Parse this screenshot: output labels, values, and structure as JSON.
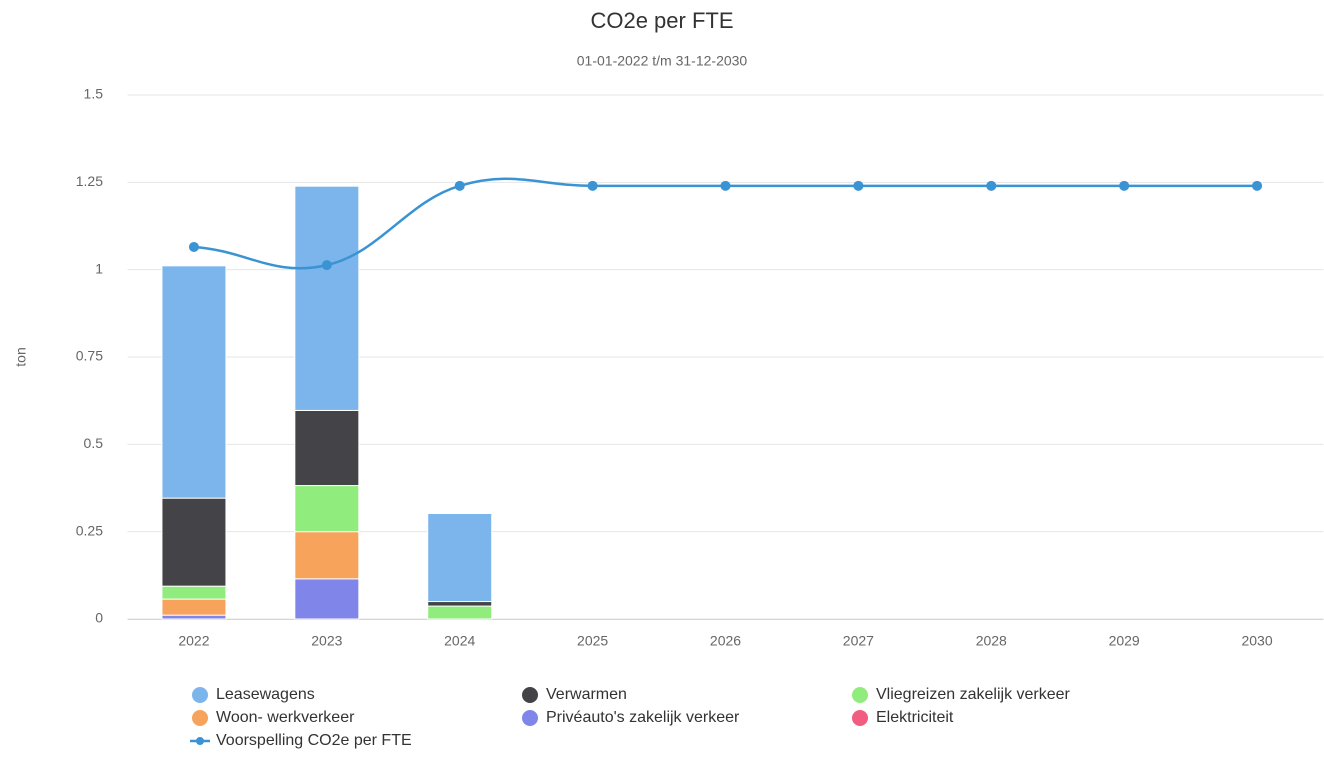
{
  "chart_data": {
    "type": "bar",
    "title": "CO2e per FTE",
    "subtitle": "01-01-2022 t/m 31-12-2030",
    "y_label": "ton",
    "stacked": true,
    "categories": [
      "2022",
      "2023",
      "2024",
      "2025",
      "2026",
      "2027",
      "2028",
      "2029",
      "2030"
    ],
    "ylim": [
      0,
      1.5
    ],
    "yticks": [
      0,
      0.25,
      0.5,
      0.75,
      1,
      1.25,
      1.5
    ],
    "grid": true,
    "series": [
      {
        "name": "Leasewagens",
        "color": "#7cb5ec",
        "values": [
          0.665,
          0.642,
          0.252,
          0,
          0,
          0,
          0,
          0,
          0
        ]
      },
      {
        "name": "Verwarmen",
        "color": "#434348",
        "values": [
          0.252,
          0.215,
          0.013,
          0,
          0,
          0,
          0,
          0,
          0
        ]
      },
      {
        "name": "Vliegreizen zakelijk verkeer",
        "color": "#90ed7d",
        "values": [
          0.037,
          0.132,
          0.037,
          0,
          0,
          0,
          0,
          0,
          0
        ]
      },
      {
        "name": "Woon- werkverkeer",
        "color": "#f7a35c",
        "values": [
          0.046,
          0.135,
          0,
          0,
          0,
          0,
          0,
          0,
          0
        ]
      },
      {
        "name": "Privéauto's zakelijk verkeer",
        "color": "#8085e9",
        "values": [
          0.011,
          0.115,
          0,
          0,
          0,
          0,
          0,
          0,
          0
        ]
      },
      {
        "name": "Elektriciteit",
        "color": "#f15c80",
        "values": [
          0,
          0,
          0,
          0,
          0,
          0,
          0,
          0,
          0
        ]
      },
      {
        "name": "Voorspelling CO2e per FTE",
        "type": "line",
        "color": "#3a93d2",
        "values": [
          1.065,
          1.013,
          1.24,
          1.24,
          1.24,
          1.24,
          1.24,
          1.24,
          1.24
        ]
      }
    ]
  }
}
